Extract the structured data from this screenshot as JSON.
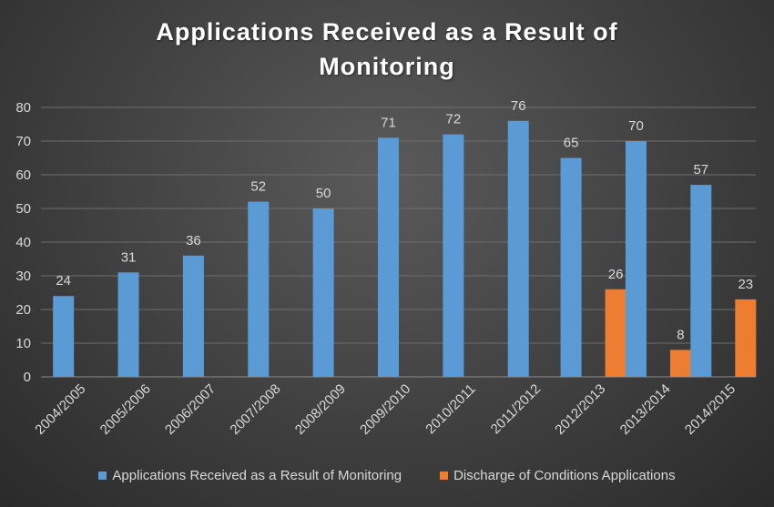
{
  "chart_data": {
    "type": "bar",
    "title_lines": [
      "Applications Received as a Result of",
      "Monitoring"
    ],
    "categories": [
      "2004/2005",
      "2005/2006",
      "2006/2007",
      "2007/2008",
      "2008/2009",
      "2009/2010",
      "2010/2011",
      "2011/2012",
      "2012/2013",
      "2013/2014",
      "2014/2015"
    ],
    "series": [
      {
        "name": "Applications Received as a Result of Monitoring",
        "color": "#5b9bd5",
        "values": [
          24,
          31,
          36,
          52,
          50,
          71,
          72,
          76,
          65,
          70,
          57
        ]
      },
      {
        "name": "Discharge of Conditions Applications",
        "color": "#ed7d31",
        "values": [
          null,
          null,
          null,
          null,
          null,
          null,
          null,
          null,
          26,
          8,
          23
        ]
      }
    ],
    "ylim": [
      0,
      80
    ],
    "yticks": [
      0,
      10,
      20,
      30,
      40,
      50,
      60,
      70,
      80
    ],
    "grid": true,
    "legend_position": "bottom",
    "data_labels": true
  }
}
